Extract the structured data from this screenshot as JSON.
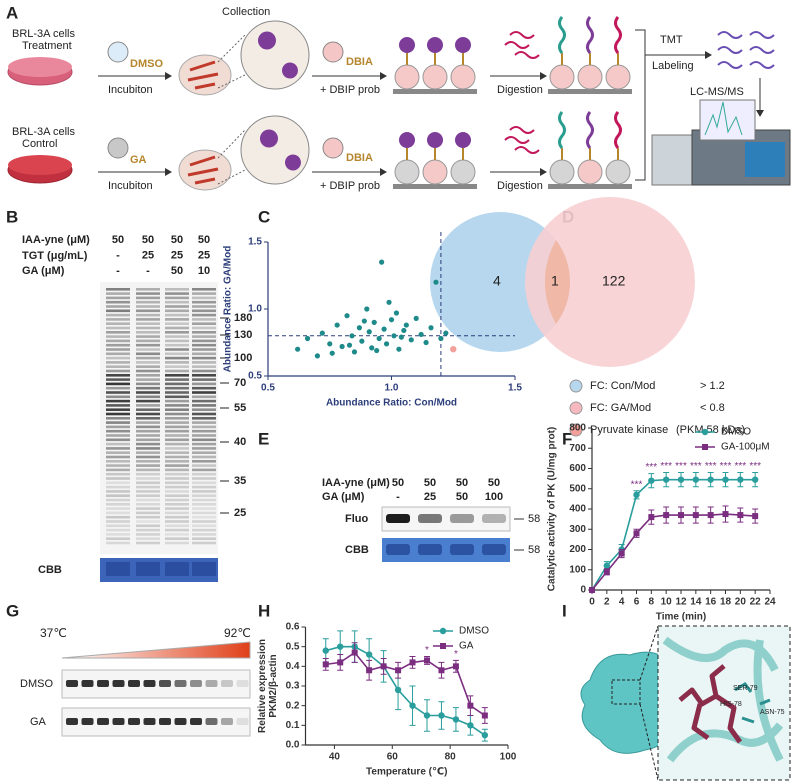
{
  "panel_labels": [
    "A",
    "B",
    "C",
    "D",
    "E",
    "F",
    "G",
    "H",
    "I"
  ],
  "workflow": {
    "treatment": [
      "BRL-3A cells",
      "Treatment"
    ],
    "control": [
      "BRL-3A cells",
      "Control"
    ],
    "dmso": "DMSO",
    "ga": "GA",
    "incubation": [
      "Incubiton",
      "Incubiton"
    ],
    "collection": "Collection",
    "dbia": [
      "DBIA",
      "DBIA"
    ],
    "probe": [
      "+ DBIP prob",
      "+ DBIP prob"
    ],
    "digestion": [
      "Digestion",
      "Digestion"
    ],
    "tmt": [
      "TMT",
      "Labeling"
    ],
    "lcms": "LC-MS/MS"
  },
  "gel_b": {
    "rows": [
      [
        "IAA-yne (μM)",
        "50",
        "50",
        "50",
        "50"
      ],
      [
        "TGT (μg/mL)",
        "-",
        "25",
        "25",
        "25"
      ],
      [
        "GA (μM)",
        "-",
        "-",
        "50",
        "10"
      ]
    ],
    "markers": [
      "180",
      "130",
      "100",
      "70",
      "55",
      "40",
      "35",
      "25"
    ],
    "stain": "CBB"
  },
  "venn": {
    "left": "4",
    "overlap": "1",
    "right": "122",
    "legend": [
      {
        "label": "FC: Con/Mod",
        "rule": "> 1.2"
      },
      {
        "label": "FC: GA/Mod",
        "rule": "< 0.8"
      },
      {
        "label": "Pyruvate kinase",
        "rule": "(PKM 58 kDa)"
      }
    ]
  },
  "gel_e": {
    "rows": [
      [
        "IAA-yne (μM)",
        "50",
        "50",
        "50",
        "50"
      ],
      [
        "GA   (μM)",
        "-",
        "25",
        "50",
        "100"
      ]
    ],
    "lanes": [
      "Fluo",
      "CBB"
    ],
    "size": [
      "58",
      "58"
    ]
  },
  "gel_g": {
    "start": "37℃",
    "end": "92℃",
    "rows": [
      "DMSO",
      "GA"
    ]
  },
  "structure": {
    "residues": [
      "SER-79",
      "HIS-78",
      "ASN-75"
    ]
  },
  "chart_data": [
    {
      "type": "scatter",
      "ylabel": "Abundance Ratio: GA/Mod",
      "xlabel": "Abundance Ratio: Con/Mod",
      "x": [
        0.62,
        0.66,
        0.7,
        0.72,
        0.75,
        0.78,
        0.8,
        0.82,
        0.84,
        0.85,
        0.87,
        0.88,
        0.9,
        0.91,
        0.92,
        0.93,
        0.95,
        0.96,
        0.97,
        0.98,
        1.0,
        1.01,
        1.02,
        1.03,
        1.05,
        1.06,
        1.08,
        1.1,
        1.12,
        1.14,
        1.16,
        1.18,
        1.2,
        1.22,
        0.76,
        0.83,
        0.89,
        0.94,
        0.99,
        1.04
      ],
      "y": [
        0.7,
        0.78,
        0.65,
        0.82,
        0.74,
        0.88,
        0.72,
        0.95,
        0.8,
        0.68,
        0.86,
        0.76,
        1.0,
        0.83,
        0.71,
        0.9,
        0.78,
        1.35,
        0.85,
        0.74,
        0.92,
        0.8,
        0.97,
        0.7,
        0.84,
        0.88,
        0.77,
        0.93,
        0.81,
        0.75,
        0.86,
        1.2,
        0.78,
        0.82,
        0.67,
        0.73,
        0.91,
        0.69,
        1.05,
        0.79
      ],
      "color": "#1f8a8a",
      "highlight": {
        "x": [
          1.25
        ],
        "y": [
          0.7
        ],
        "color": "#f4a09a"
      },
      "thresholds": {
        "x": 1.2,
        "y": 0.8
      },
      "xlim": [
        0.5,
        1.5
      ],
      "ylim": [
        0.5,
        1.5
      ],
      "xticks": [
        0.5,
        {
          "value": 1,
          "label": "1.0"
        },
        1.5
      ],
      "yticks": [
        0.5,
        {
          "value": 1,
          "label": "1.0"
        },
        1.5
      ]
    },
    {
      "type": "line",
      "ylabel": "Catalytic activity of PK (U/mg prot)",
      "xlabel": "Time (min)",
      "x": [
        0,
        2,
        4,
        6,
        8,
        10,
        12,
        14,
        16,
        18,
        20,
        22
      ],
      "series": [
        {
          "name": "DMSO",
          "color": "#2a9d9d",
          "marker": "circle",
          "values": [
            0,
            120,
            200,
            470,
            540,
            545,
            545,
            545,
            545,
            545,
            545,
            545
          ],
          "errors": [
            5,
            20,
            25,
            20,
            35,
            35,
            35,
            35,
            35,
            35,
            35,
            35
          ]
        },
        {
          "name": "GA-100μM",
          "color": "#7b2d80",
          "marker": "square",
          "values": [
            0,
            90,
            180,
            280,
            360,
            370,
            370,
            370,
            370,
            375,
            370,
            365
          ],
          "errors": [
            5,
            15,
            20,
            20,
            35,
            40,
            40,
            40,
            40,
            40,
            35,
            35
          ]
        }
      ],
      "significance": [
        null,
        null,
        null,
        "***",
        "***",
        "***",
        "***",
        "***",
        "***",
        "***",
        "***",
        "***"
      ],
      "xlim": [
        0,
        24
      ],
      "ylim": [
        0,
        800
      ],
      "xticks": [
        0,
        2,
        4,
        6,
        8,
        10,
        12,
        14,
        16,
        18,
        20,
        22,
        24
      ],
      "yticks": [
        0,
        100,
        200,
        300,
        400,
        500,
        600,
        700,
        800
      ],
      "legend": "upper right"
    },
    {
      "type": "line",
      "ylabel": [
        "Relative expression",
        "PKM2/β-actin"
      ],
      "xlabel": "Temperature (℃)",
      "x": [
        37,
        42,
        47,
        52,
        57,
        62,
        67,
        72,
        77,
        82,
        87,
        92
      ],
      "series": [
        {
          "name": "DMSO",
          "color": "#2a9d9d",
          "marker": "circle",
          "values": [
            0.48,
            0.5,
            0.5,
            0.46,
            0.4,
            0.28,
            0.2,
            0.15,
            0.15,
            0.13,
            0.1,
            0.05
          ],
          "errors": [
            0.06,
            0.08,
            0.08,
            0.08,
            0.08,
            0.1,
            0.1,
            0.08,
            0.07,
            0.06,
            0.05,
            0.03
          ]
        },
        {
          "name": "GA",
          "color": "#7b2d80",
          "marker": "square",
          "values": [
            0.41,
            0.42,
            0.47,
            0.38,
            0.4,
            0.38,
            0.42,
            0.43,
            0.38,
            0.4,
            0.2,
            0.15
          ],
          "errors": [
            0.03,
            0.04,
            0.05,
            0.05,
            0.04,
            0.04,
            0.03,
            0.02,
            0.04,
            0.03,
            0.05,
            0.04
          ]
        }
      ],
      "significance": [
        null,
        null,
        null,
        null,
        null,
        null,
        null,
        "*",
        null,
        "*",
        null,
        null
      ],
      "xlim": [
        30,
        100
      ],
      "ylim": [
        0,
        0.6
      ],
      "xticks": [
        40,
        60,
        80,
        100
      ],
      "yticks": [
        {
          "value": 0,
          "label": "0.0"
        },
        0.1,
        0.2,
        0.3,
        0.4,
        0.5,
        0.6
      ],
      "legend": "upper right"
    }
  ]
}
